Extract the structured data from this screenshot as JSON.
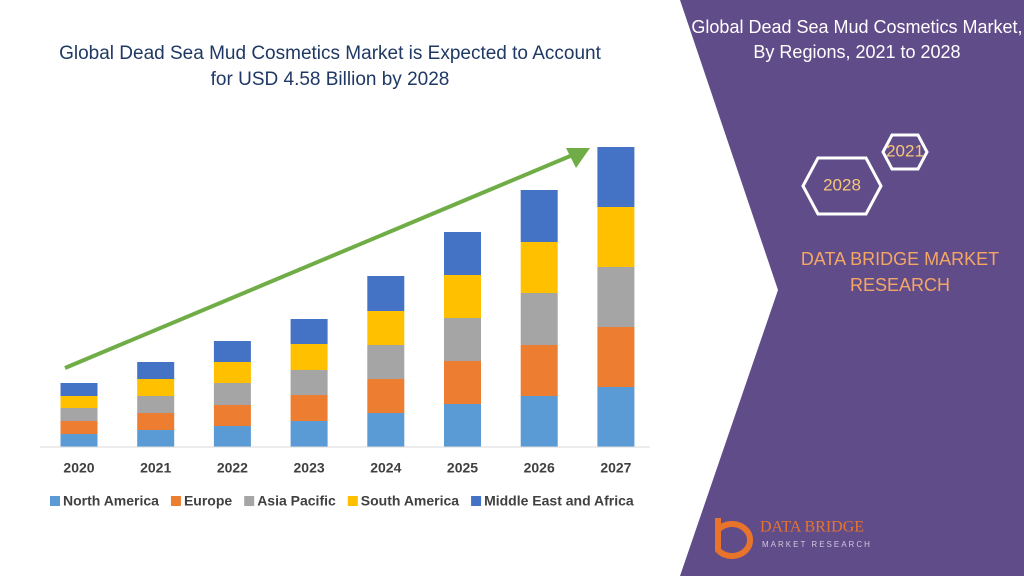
{
  "chart_data": {
    "type": "bar",
    "stacked": true,
    "title": "Global Dead Sea Mud Cosmetics Market is Expected to Account for USD 4.58 Billion by 2028",
    "categories": [
      "2020",
      "2021",
      "2022",
      "2023",
      "2024",
      "2025",
      "2026",
      "2027"
    ],
    "series": [
      {
        "name": "North America",
        "color": "#5b9bd5",
        "values": [
          13,
          17,
          21,
          26,
          34,
          43,
          51,
          60
        ]
      },
      {
        "name": "Europe",
        "color": "#ed7d31",
        "values": [
          13,
          17,
          21,
          26,
          34,
          43,
          51,
          60
        ]
      },
      {
        "name": "Asia Pacific",
        "color": "#a5a5a5",
        "values": [
          13,
          17,
          22,
          25,
          34,
          43,
          52,
          60
        ]
      },
      {
        "name": "South America",
        "color": "#ffc000",
        "values": [
          12,
          17,
          21,
          26,
          34,
          43,
          51,
          60
        ]
      },
      {
        "name": "Middle East and Africa",
        "color": "#4472c4",
        "values": [
          13,
          17,
          21,
          25,
          35,
          43,
          52,
          60
        ]
      }
    ]
  },
  "panel": {
    "title": "Global Dead Sea Mud Cosmetics Market, By Regions, 2021 to 2028",
    "years": [
      "2021",
      "2028"
    ],
    "brand": "DATA BRIDGE MARKET RESEARCH"
  },
  "logo": {
    "name": "DATA BRIDGE",
    "tagline": "MARKET RESEARCH"
  }
}
